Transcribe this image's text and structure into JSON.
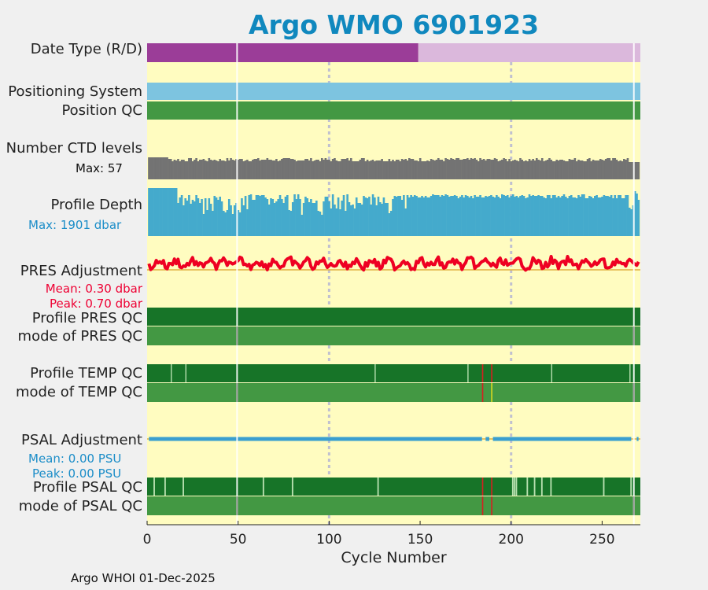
{
  "title": "Argo WMO 6901923",
  "footer": "Argo WHOI 01-Dec-2025",
  "colors": {
    "title": "#1088be",
    "background": "#fffcc0",
    "grid": "#c0c0d0",
    "delayed": "#dbb8dc",
    "realtime": "#9b3d98",
    "positioning": "#7dc4e0",
    "qc_good": "#177428",
    "qc_mode": "#439843",
    "qc_bad": "#d62020",
    "qc_prob": "#d8d820",
    "qc_light": "#b8e0b0",
    "qc_gray": "#a0a0a0",
    "ctd": "#737373",
    "depth": "#44aacc",
    "pres": "#ee0022",
    "pres_zero": "#e0b040",
    "psal": "#3a9fd0",
    "sub_blue": "#1b8dc8",
    "sub_red": "#ee0033"
  },
  "labels": {
    "date_type": "Date Type (R/D)",
    "positioning_system": "Positioning System",
    "position_qc": "Position QC",
    "number_ctd": "Number CTD levels",
    "ctd_max": "Max: 57",
    "profile_depth": "Profile Depth",
    "depth_max": "Max: 1901 dbar",
    "pres_adjustment": "PRES Adjustment",
    "pres_mean": "Mean: 0.30 dbar",
    "pres_peak": "Peak: 0.70 dbar",
    "profile_pres_qc": "Profile PRES QC",
    "mode_pres_qc": "mode of PRES QC",
    "profile_temp_qc": "Profile TEMP QC",
    "mode_temp_qc": "mode of TEMP QC",
    "psal_adjustment": "PSAL Adjustment",
    "psal_mean": "Mean: 0.00 PSU",
    "psal_peak": "Peak: 0.00 PSU",
    "profile_psal_qc": "Profile PSAL QC",
    "mode_psal_qc": "mode of PSAL QC"
  },
  "chart_data": {
    "type": "table",
    "xlabel": "Cycle Number",
    "xlim": [
      0,
      271
    ],
    "xticks": [
      0,
      50,
      100,
      150,
      200,
      250
    ],
    "xgrid": [
      100,
      200
    ],
    "date_type": {
      "realtime_cycles": [
        0,
        149
      ],
      "delayed_cycles": [
        149,
        271
      ],
      "gaps": [
        49,
        267
      ]
    },
    "ctd_levels_max": 57,
    "profile_depth_max_dbar": 1901,
    "pres_adjustment": {
      "mean_dbar": 0.3,
      "peak_dbar": 0.7
    },
    "psal_adjustment": {
      "mean_psu": 0.0,
      "peak_psu": 0.0,
      "gaps": [
        185,
        188,
        268
      ]
    },
    "temp_qc_bad_cycles": [
      184,
      189
    ],
    "psal_qc_bad_cycles": [
      184,
      189
    ],
    "missing_cycles": [
      49,
      267
    ]
  }
}
